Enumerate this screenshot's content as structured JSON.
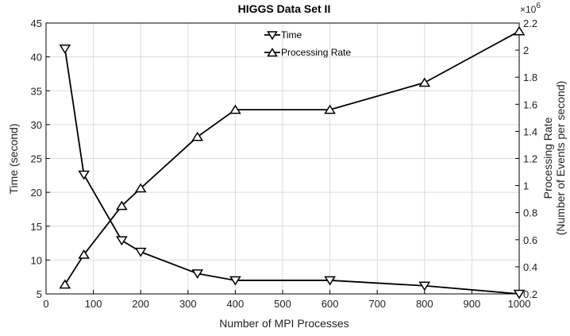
{
  "chart_data": {
    "type": "line",
    "title": "HIGGS Data Set II",
    "xlabel": "Number of MPI Processes",
    "ylabel_left": "Time (second)",
    "ylabel_right_line1": "Processing Rate",
    "ylabel_right_line2": "(Number of Events per second)",
    "xlim": [
      0,
      1000
    ],
    "ylim_left": [
      5,
      45
    ],
    "ylim_right": [
      0.2,
      2.2
    ],
    "right_axis_multiplier": "×10",
    "right_axis_exponent": "6",
    "grid": true,
    "legend_position": "top-center",
    "x_ticks": [
      "0",
      "100",
      "200",
      "300",
      "400",
      "500",
      "600",
      "700",
      "800",
      "900",
      "1000"
    ],
    "y_left_ticks": [
      "5",
      "10",
      "15",
      "20",
      "25",
      "30",
      "35",
      "40",
      "45"
    ],
    "y_right_ticks": [
      "0.2",
      "0.4",
      "0.6",
      "0.8",
      "1",
      "1.2",
      "1.4",
      "1.6",
      "1.8",
      "2",
      "2.2"
    ],
    "x": [
      40,
      80,
      160,
      200,
      320,
      400,
      600,
      800,
      1000
    ],
    "series": [
      {
        "name": "Time",
        "axis": "left",
        "marker": "triangle-down",
        "values": [
          41.2,
          22.6,
          12.9,
          11.2,
          8.0,
          7.0,
          7.0,
          6.2,
          5.0
        ]
      },
      {
        "name": "Processing Rate",
        "axis": "right",
        "marker": "triangle-up",
        "values": [
          0.27,
          0.49,
          0.85,
          0.98,
          1.36,
          1.56,
          1.56,
          1.76,
          2.14
        ]
      }
    ]
  }
}
